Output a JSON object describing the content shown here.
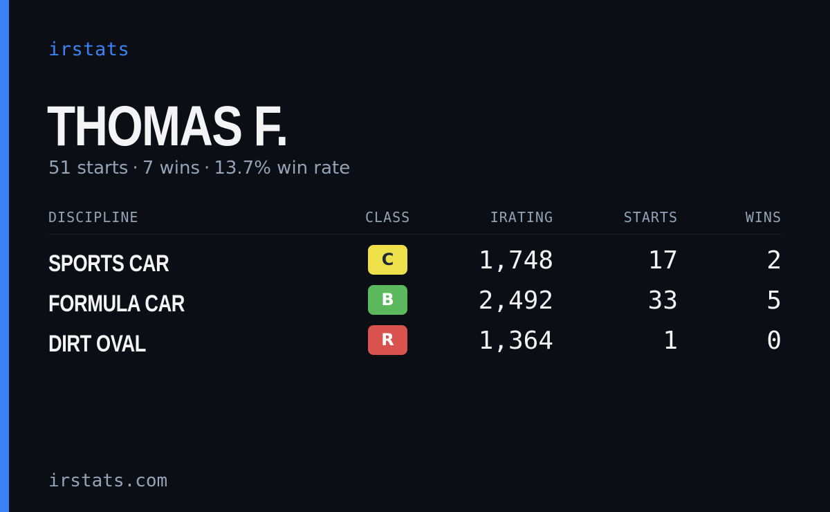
{
  "brand": "irstats",
  "player": {
    "name": "THOMAS F.",
    "starts": "51 starts",
    "wins": "7 wins",
    "win_rate": "13.7% win rate",
    "separator": "·"
  },
  "table": {
    "headers": {
      "discipline": "DISCIPLINE",
      "class": "CLASS",
      "irating": "IRATING",
      "starts": "STARTS",
      "wins": "WINS"
    },
    "rows": [
      {
        "discipline": "SPORTS CAR",
        "class": "C",
        "class_bg": "#ede04a",
        "class_fg": "#1f2937",
        "irating": "1,748",
        "starts": "17",
        "wins": "2"
      },
      {
        "discipline": "FORMULA CAR",
        "class": "B",
        "class_bg": "#5cb85c",
        "class_fg": "#ffffff",
        "irating": "2,492",
        "starts": "33",
        "wins": "5"
      },
      {
        "discipline": "DIRT OVAL",
        "class": "R",
        "class_bg": "#d9534f",
        "class_fg": "#ffffff",
        "irating": "1,364",
        "starts": "1",
        "wins": "0"
      }
    ]
  },
  "footer": "irstats.com",
  "colors": {
    "background": "#0b0e14",
    "accent": "#3b82f6",
    "text": "#f3f4f6",
    "muted": "#94a3b8"
  }
}
